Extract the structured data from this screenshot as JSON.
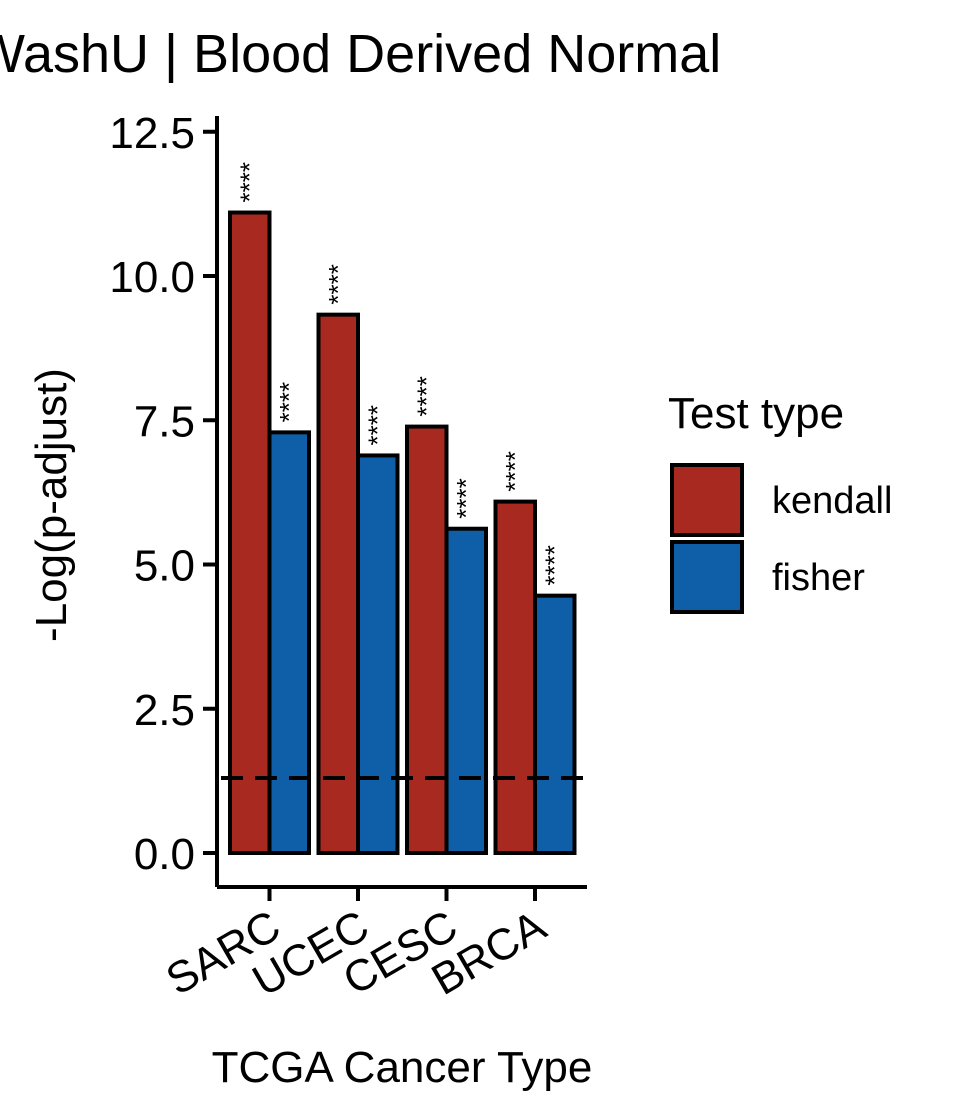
{
  "chart_data": {
    "type": "bar",
    "title": "WashU | Blood Derived Normal",
    "xlabel": "TCGA Cancer Type",
    "ylabel": "-Log(p-adjust)",
    "ylim": [
      -0.6,
      12.7
    ],
    "yticks": [
      "0.0",
      "2.5",
      "5.0",
      "7.5",
      "10.0",
      "12.5"
    ],
    "ytick_values": [
      0,
      2.5,
      5,
      7.5,
      10,
      12.5
    ],
    "categories": [
      "SARC",
      "UCEC",
      "CESC",
      "BRCA"
    ],
    "series": [
      {
        "name": "kendall",
        "color": "#a8291f",
        "values": [
          11.1,
          9.33,
          7.39,
          6.09
        ],
        "labels": [
          "****",
          "****",
          "****",
          "****"
        ]
      },
      {
        "name": "fisher",
        "color": "#0e5ea8",
        "values": [
          7.29,
          6.89,
          5.62,
          4.46
        ],
        "labels": [
          "****",
          "****",
          "****",
          "****"
        ]
      }
    ],
    "reference_line": {
      "y": 1.3,
      "style": "dashed"
    },
    "legend": {
      "title": "Test type",
      "position": "right"
    },
    "grid": false
  }
}
